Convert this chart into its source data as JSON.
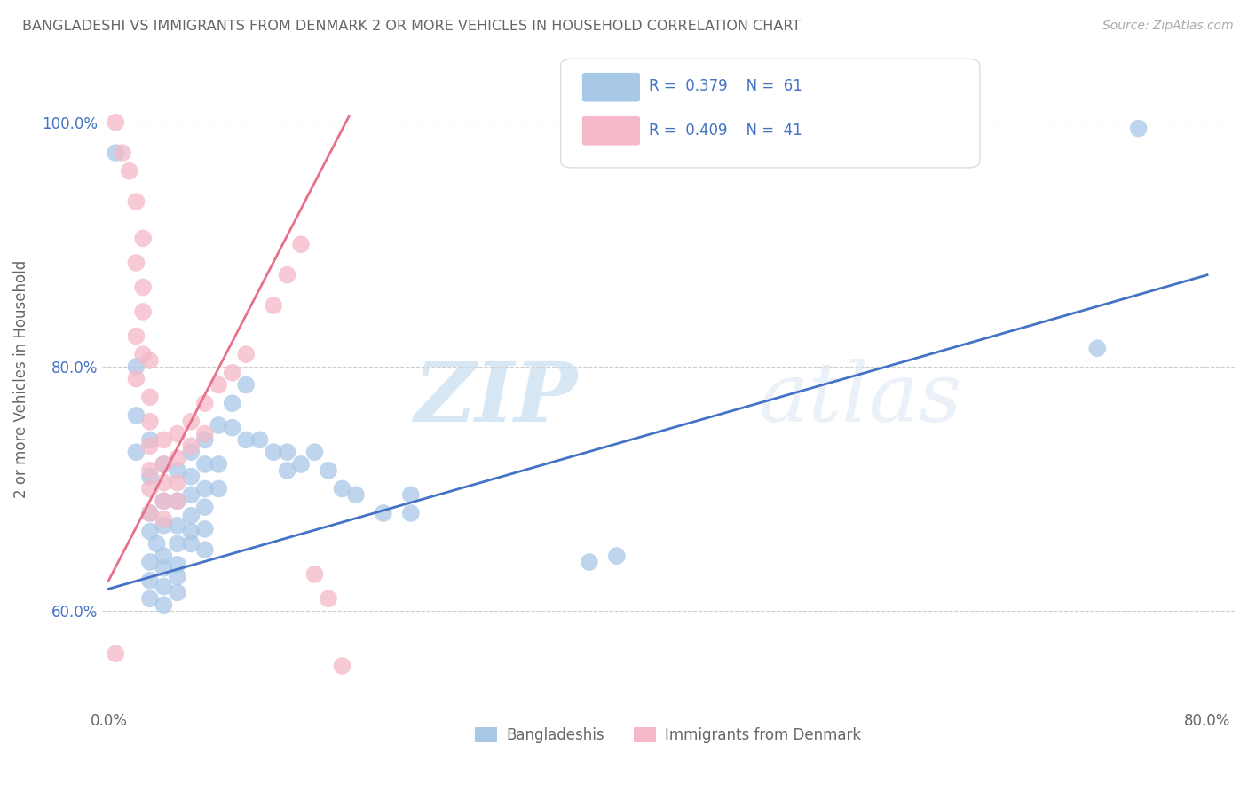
{
  "title": "BANGLADESHI VS IMMIGRANTS FROM DENMARK 2 OR MORE VEHICLES IN HOUSEHOLD CORRELATION CHART",
  "source": "Source: ZipAtlas.com",
  "xlabel_bottom": [
    "Bangladeshis",
    "Immigrants from Denmark"
  ],
  "ylabel": "2 or more Vehicles in Household",
  "xlim": [
    -0.005,
    0.82
  ],
  "ylim": [
    0.52,
    1.06
  ],
  "x_ticks": [
    0.0,
    0.1,
    0.2,
    0.3,
    0.4,
    0.5,
    0.6,
    0.7,
    0.8
  ],
  "x_tick_labels": [
    "0.0%",
    "",
    "",
    "",
    "",
    "",
    "",
    "",
    "80.0%"
  ],
  "y_ticks": [
    0.6,
    0.8,
    1.0
  ],
  "y_tick_labels": [
    "60.0%",
    "80.0%",
    "100.0%"
  ],
  "blue_color": "#a8c8e8",
  "pink_color": "#f4b8c8",
  "trend_blue": "#4472c4",
  "trend_pink": "#e8708a",
  "watermark_zip": "ZIP",
  "watermark_atlas": "atlas",
  "blue_scatter": [
    [
      0.005,
      0.975
    ],
    [
      0.02,
      0.8
    ],
    [
      0.02,
      0.76
    ],
    [
      0.02,
      0.73
    ],
    [
      0.03,
      0.74
    ],
    [
      0.03,
      0.71
    ],
    [
      0.03,
      0.68
    ],
    [
      0.03,
      0.665
    ],
    [
      0.03,
      0.64
    ],
    [
      0.03,
      0.625
    ],
    [
      0.03,
      0.61
    ],
    [
      0.035,
      0.655
    ],
    [
      0.04,
      0.72
    ],
    [
      0.04,
      0.69
    ],
    [
      0.04,
      0.67
    ],
    [
      0.04,
      0.645
    ],
    [
      0.04,
      0.635
    ],
    [
      0.04,
      0.62
    ],
    [
      0.04,
      0.605
    ],
    [
      0.05,
      0.715
    ],
    [
      0.05,
      0.69
    ],
    [
      0.05,
      0.67
    ],
    [
      0.05,
      0.655
    ],
    [
      0.05,
      0.638
    ],
    [
      0.05,
      0.628
    ],
    [
      0.05,
      0.615
    ],
    [
      0.06,
      0.73
    ],
    [
      0.06,
      0.71
    ],
    [
      0.06,
      0.695
    ],
    [
      0.06,
      0.678
    ],
    [
      0.06,
      0.665
    ],
    [
      0.06,
      0.655
    ],
    [
      0.07,
      0.74
    ],
    [
      0.07,
      0.72
    ],
    [
      0.07,
      0.7
    ],
    [
      0.07,
      0.685
    ],
    [
      0.07,
      0.667
    ],
    [
      0.07,
      0.65
    ],
    [
      0.08,
      0.752
    ],
    [
      0.08,
      0.72
    ],
    [
      0.08,
      0.7
    ],
    [
      0.09,
      0.77
    ],
    [
      0.09,
      0.75
    ],
    [
      0.1,
      0.785
    ],
    [
      0.1,
      0.74
    ],
    [
      0.11,
      0.74
    ],
    [
      0.12,
      0.73
    ],
    [
      0.13,
      0.73
    ],
    [
      0.13,
      0.715
    ],
    [
      0.14,
      0.72
    ],
    [
      0.15,
      0.73
    ],
    [
      0.16,
      0.715
    ],
    [
      0.17,
      0.7
    ],
    [
      0.18,
      0.695
    ],
    [
      0.2,
      0.68
    ],
    [
      0.22,
      0.695
    ],
    [
      0.22,
      0.68
    ],
    [
      0.35,
      0.64
    ],
    [
      0.37,
      0.645
    ],
    [
      0.72,
      0.815
    ],
    [
      0.75,
      0.995
    ]
  ],
  "pink_scatter": [
    [
      0.005,
      1.0
    ],
    [
      0.01,
      0.975
    ],
    [
      0.015,
      0.96
    ],
    [
      0.02,
      0.935
    ],
    [
      0.025,
      0.905
    ],
    [
      0.02,
      0.885
    ],
    [
      0.025,
      0.865
    ],
    [
      0.025,
      0.845
    ],
    [
      0.02,
      0.825
    ],
    [
      0.025,
      0.81
    ],
    [
      0.02,
      0.79
    ],
    [
      0.03,
      0.805
    ],
    [
      0.03,
      0.775
    ],
    [
      0.03,
      0.755
    ],
    [
      0.03,
      0.735
    ],
    [
      0.03,
      0.715
    ],
    [
      0.03,
      0.7
    ],
    [
      0.03,
      0.68
    ],
    [
      0.04,
      0.74
    ],
    [
      0.04,
      0.72
    ],
    [
      0.04,
      0.705
    ],
    [
      0.04,
      0.69
    ],
    [
      0.04,
      0.675
    ],
    [
      0.05,
      0.745
    ],
    [
      0.05,
      0.725
    ],
    [
      0.05,
      0.705
    ],
    [
      0.05,
      0.69
    ],
    [
      0.06,
      0.755
    ],
    [
      0.06,
      0.735
    ],
    [
      0.07,
      0.77
    ],
    [
      0.07,
      0.745
    ],
    [
      0.08,
      0.785
    ],
    [
      0.09,
      0.795
    ],
    [
      0.1,
      0.81
    ],
    [
      0.12,
      0.85
    ],
    [
      0.13,
      0.875
    ],
    [
      0.14,
      0.9
    ],
    [
      0.15,
      0.63
    ],
    [
      0.16,
      0.61
    ],
    [
      0.005,
      0.565
    ],
    [
      0.17,
      0.555
    ]
  ],
  "blue_trend_x": [
    0.0,
    0.8
  ],
  "blue_trend_y": [
    0.618,
    0.875
  ],
  "pink_trend_x": [
    0.0,
    0.175
  ],
  "pink_trend_y": [
    0.625,
    1.005
  ]
}
